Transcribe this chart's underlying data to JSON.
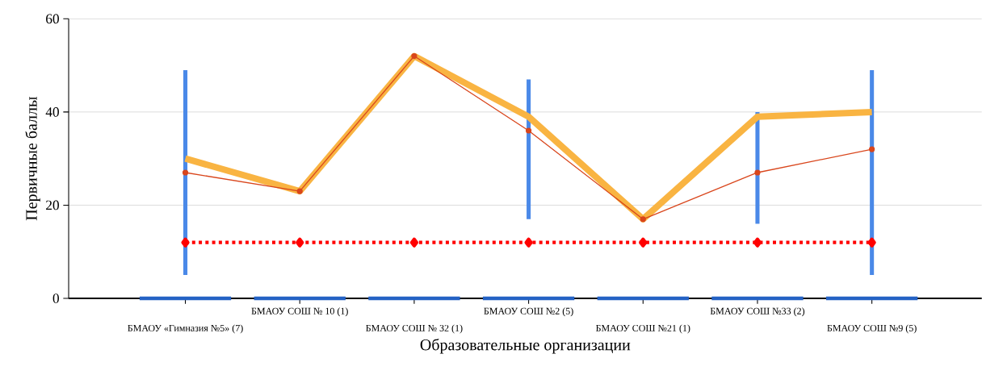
{
  "chart_data": {
    "type": "line",
    "xlabel": "Образовательные организации",
    "ylabel": "Первичные баллы",
    "categories": [
      "БМАОУ «Гимназия №5» (7)",
      "БМАОУ СОШ № 10 (1)",
      "БМАОУ СОШ № 32 (1)",
      "БМАОУ СОШ №2 (5)",
      "БМАОУ СОШ №21 (1)",
      "БМАОУ СОШ №33 (2)",
      "БМАОУ СОШ №9 (5)"
    ],
    "series": [
      {
        "type": "bar",
        "color": "#2462c4",
        "values": [
          0,
          0,
          0,
          0,
          0,
          0,
          0
        ]
      },
      {
        "type": "bar",
        "color": "#4a89e8",
        "base": [
          5,
          null,
          null,
          17,
          null,
          16,
          5
        ],
        "values": [
          44,
          null,
          null,
          30,
          null,
          24,
          44
        ]
      },
      {
        "color": "#f9b442",
        "values": [
          30,
          23,
          52,
          39,
          17,
          39,
          40
        ],
        "marker": "none",
        "line_style": "solid"
      },
      {
        "color": "#d9461c",
        "values": [
          27,
          23,
          52,
          36,
          17,
          27,
          32
        ],
        "marker": "circle",
        "line_style": "solid"
      },
      {
        "color": "#ff0000",
        "values": [
          12,
          12,
          12,
          12,
          12,
          12,
          12
        ],
        "marker": "diamond",
        "line_style": "dotted"
      }
    ],
    "ylim": [
      0,
      60
    ],
    "yticks": [
      0,
      20,
      40,
      60
    ],
    "grid": "y"
  }
}
